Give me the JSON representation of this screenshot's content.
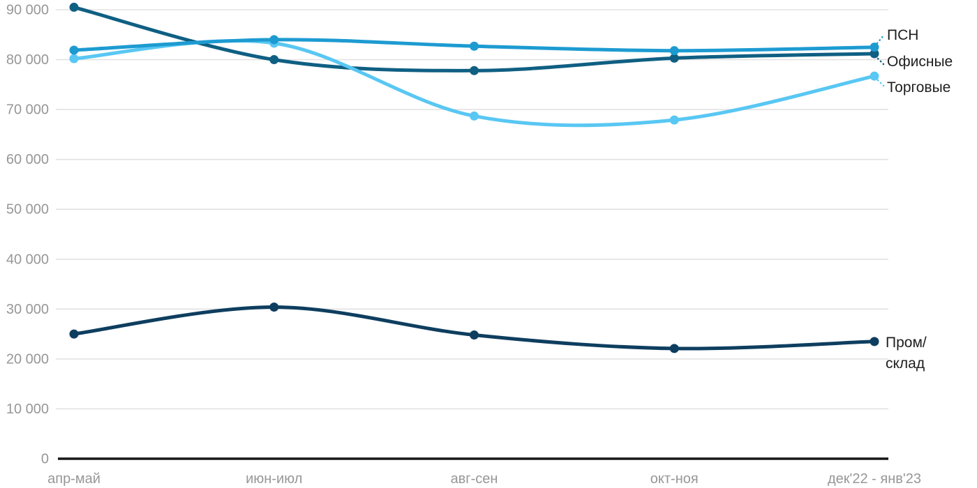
{
  "chart_data": {
    "type": "line",
    "title": "",
    "xlabel": "",
    "ylabel": "",
    "categories": [
      "апр-май",
      "июн-июл",
      "авг-сен",
      "окт-ноя",
      "дек'22 - янв'23"
    ],
    "series": [
      {
        "key": "psn",
        "name": "ПСН",
        "color": "#1d9bd1",
        "values": [
          81900,
          84000,
          82700,
          81800,
          82500
        ]
      },
      {
        "key": "ofisnye",
        "name": "Офисные",
        "color": "#0f5f83",
        "values": [
          90500,
          80000,
          77800,
          80300,
          81200
        ]
      },
      {
        "key": "torgovye",
        "name": "Торговые",
        "color": "#59c7f3",
        "values": [
          80200,
          83300,
          68700,
          67900,
          76700
        ]
      },
      {
        "key": "prom-sklad",
        "name": "Пром/склад",
        "color": "#0e3e5f",
        "values": [
          25000,
          30400,
          24800,
          22100,
          23500
        ]
      }
    ],
    "ylim": [
      0,
      90000
    ],
    "yticks": [
      {
        "value": 0,
        "label": "0"
      },
      {
        "value": 10000,
        "label": "10 000"
      },
      {
        "value": 20000,
        "label": "20 000"
      },
      {
        "value": 30000,
        "label": "30 000"
      },
      {
        "value": 40000,
        "label": "40 000"
      },
      {
        "value": 50000,
        "label": "50 000"
      },
      {
        "value": 60000,
        "label": "60 000"
      },
      {
        "value": 70000,
        "label": "70 000"
      },
      {
        "value": 80000,
        "label": "80 000"
      },
      {
        "value": 90000,
        "label": "90 000"
      }
    ],
    "grid": true,
    "legend_position": "direct labels at right line ends with dotted connectors",
    "curve": "smooth"
  },
  "theme": {
    "grid": "#e2e2e2",
    "axis": "#161616",
    "tick_text": "#979797",
    "legend_text": "#1e1e1e",
    "background": "#ffffff"
  }
}
